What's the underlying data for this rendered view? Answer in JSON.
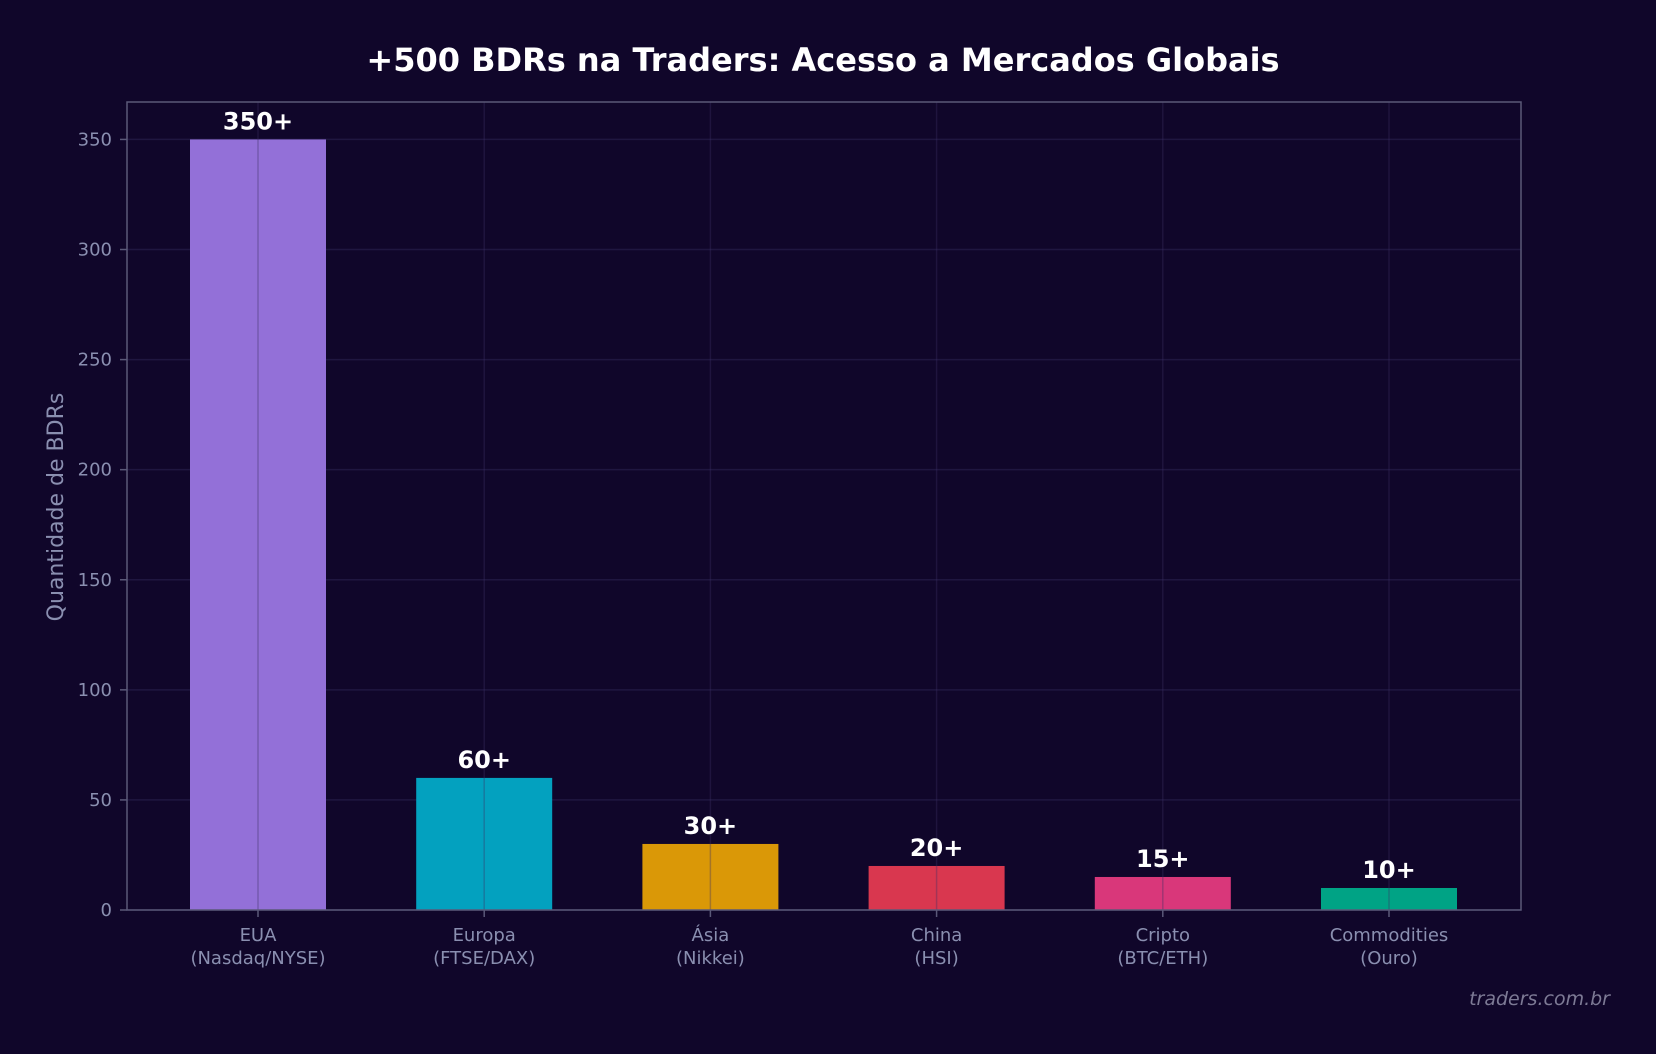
{
  "chart_data": {
    "type": "bar",
    "title": "+500 BDRs na Traders: Acesso a Mercados Globais",
    "xlabel": "",
    "ylabel": "Quantidade de BDRs",
    "ylim": [
      0,
      367
    ],
    "yticks": [
      0,
      50,
      100,
      150,
      200,
      250,
      300,
      350
    ],
    "grid": true,
    "categories": [
      [
        "EUA",
        "(Nasdaq/NYSE)"
      ],
      [
        "Europa",
        "(FTSE/DAX)"
      ],
      [
        "Ásia",
        "(Nikkei)"
      ],
      [
        "China",
        "(HSI)"
      ],
      [
        "Cripto",
        "(BTC/ETH)"
      ],
      [
        "Commodities",
        "(Ouro)"
      ]
    ],
    "values": [
      350,
      60,
      30,
      20,
      15,
      10
    ],
    "data_labels": [
      "350+",
      "60+",
      "30+",
      "20+",
      "15+",
      "10+"
    ],
    "colors": [
      "#9370d8",
      "#03a1bf",
      "#da9807",
      "#d9374f",
      "#d9377a",
      "#00a385"
    ]
  },
  "watermark": "traders.com.br",
  "style": {
    "background": "#10062a",
    "plot_border": "#5a5878",
    "grid_color": "#1f1640"
  }
}
